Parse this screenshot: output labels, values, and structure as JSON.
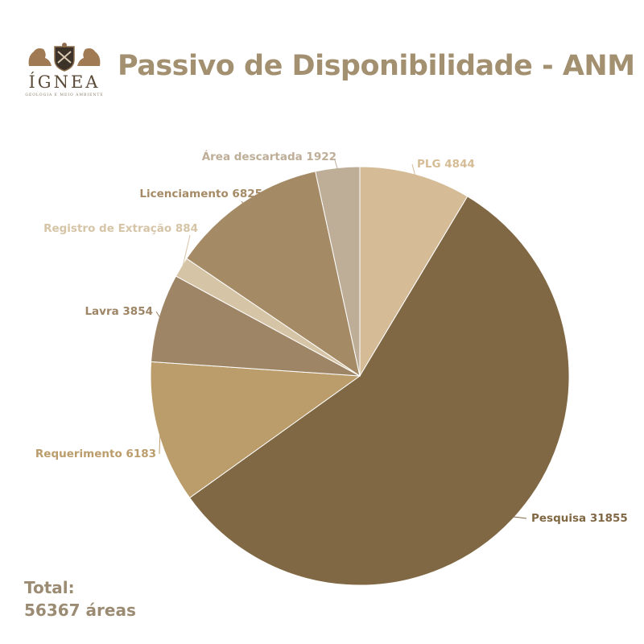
{
  "logo": {
    "name": "ÍGNEA",
    "tagline": "GEOLOGIA E MEIO AMBIENTE"
  },
  "title": "Passivo de Disponibilidade - ANM",
  "total": {
    "label": "Total:",
    "value": "56367 áreas"
  },
  "chart_data": {
    "type": "pie",
    "title": "Passivo de Disponibilidade - ANM",
    "slices": [
      {
        "label": "PLG",
        "value": 4844,
        "color": "#d6bc96",
        "label_color": "#d6bc96"
      },
      {
        "label": "Pesquisa",
        "value": 31855,
        "color": "#806844",
        "label_color": "#806844"
      },
      {
        "label": "Requerimento",
        "value": 6183,
        "color": "#bb9d6c",
        "label_color": "#bb9d6c"
      },
      {
        "label": "Lavra",
        "value": 3854,
        "color": "#9d8566",
        "label_color": "#9d8566"
      },
      {
        "label": "Registro de Extração",
        "value": 884,
        "color": "#d6c4a6",
        "label_color": "#d6c4a6"
      },
      {
        "label": "Licenciamento",
        "value": 6825,
        "color": "#a58a66",
        "label_color": "#a58a66"
      },
      {
        "label": "Área descartada",
        "value": 1922,
        "color": "#beae98",
        "label_color": "#beae98"
      }
    ],
    "start": "top",
    "direction": "clockwise",
    "legend": "none"
  }
}
